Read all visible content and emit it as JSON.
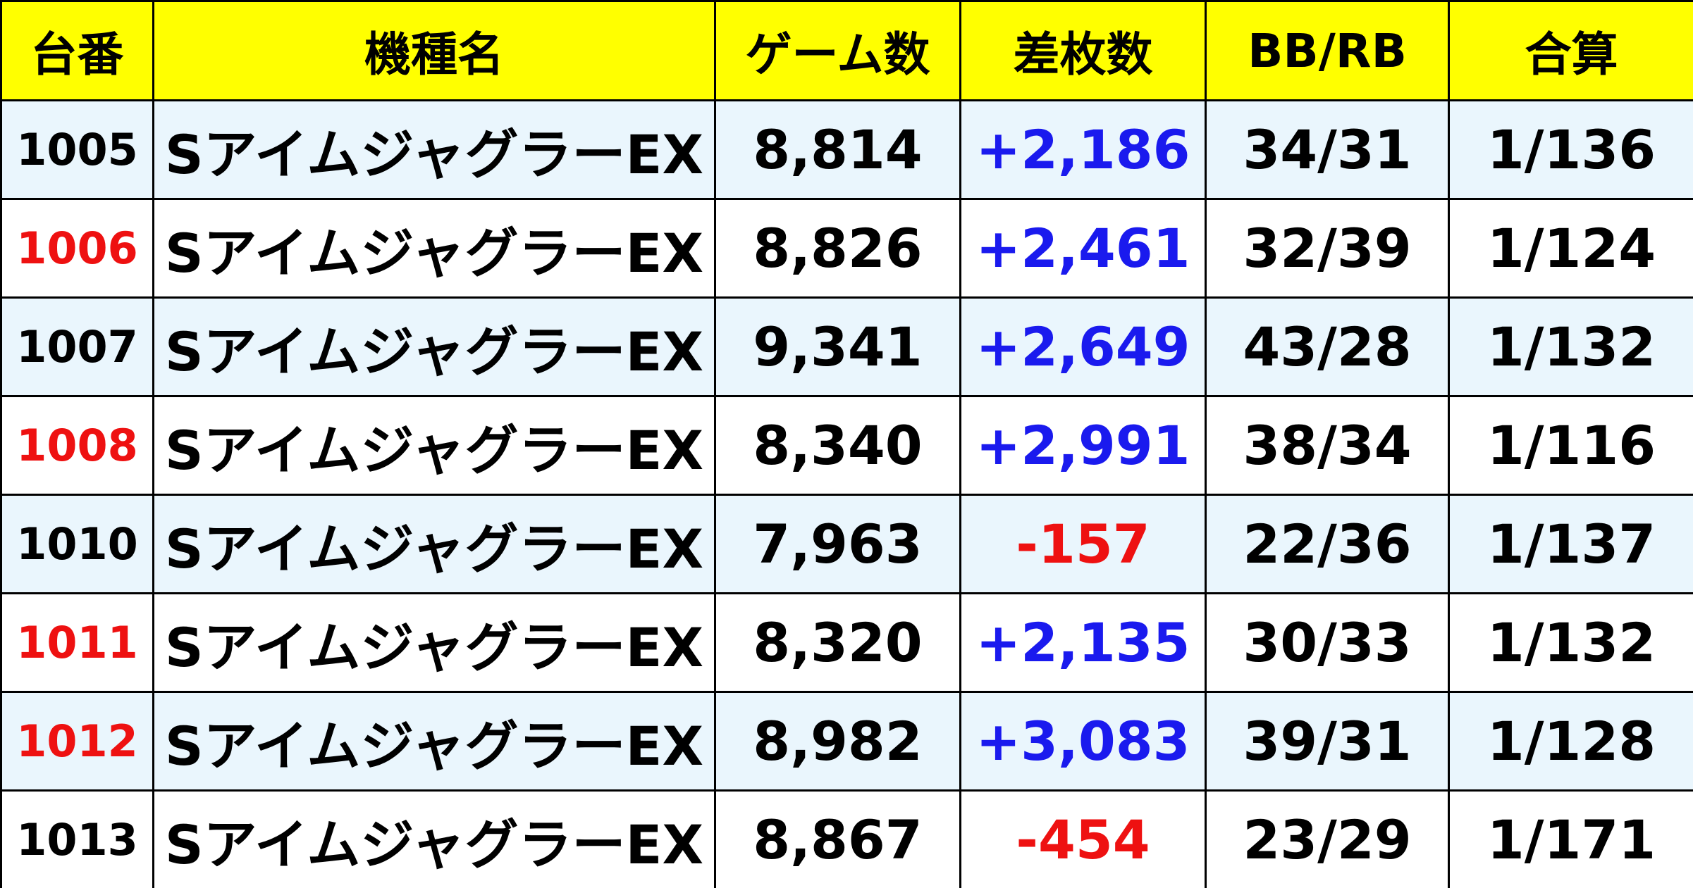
{
  "table": {
    "header": [
      "台番",
      "機種名",
      "ゲーム数",
      "差枚数",
      "BB/RB",
      "合算"
    ],
    "rows": [
      [
        "1005",
        "SアイムジャグラーEX",
        "8,814",
        "+2,186",
        "34/31",
        "1/136"
      ],
      [
        "1006",
        "SアイムジャグラーEX",
        "8,826",
        "+2,461",
        "32/39",
        "1/124"
      ],
      [
        "1007",
        "SアイムジャグラーEX",
        "9,341",
        "+2,649",
        "43/28",
        "1/132"
      ],
      [
        "1008",
        "SアイムジャグラーEX",
        "8,340",
        "+2,991",
        "38/34",
        "1/116"
      ],
      [
        "1010",
        "SアイムジャグラーEX",
        "7,963",
        "-157",
        "22/36",
        "1/137"
      ],
      [
        "1011",
        "SアイムジャグラーEX",
        "8,320",
        "+2,135",
        "30/33",
        "1/132"
      ],
      [
        "1012",
        "SアイムジャグラーEX",
        "8,982",
        "+3,083",
        "39/31",
        "1/128"
      ],
      [
        "1013",
        "SアイムジャグラーEX",
        "8,867",
        "-454",
        "23/29",
        "1/171"
      ]
    ]
  }
}
